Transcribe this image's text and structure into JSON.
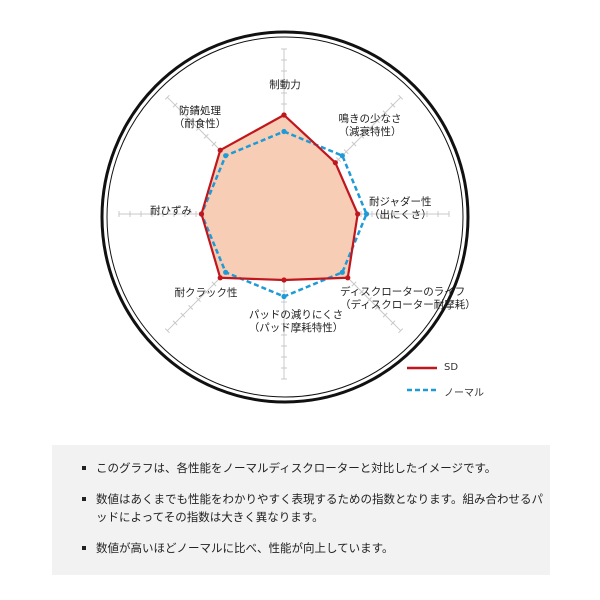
{
  "chart_data": {
    "type": "radar",
    "axes": [
      {
        "label": [
          "制動力"
        ]
      },
      {
        "label": [
          "鳴きの少なさ",
          "（減衰特性）"
        ]
      },
      {
        "label": [
          "耐ジャダー性",
          "（出にくさ）"
        ]
      },
      {
        "label": [
          "ディスクローターのライフ",
          "（ディスクローター耐摩耗）"
        ]
      },
      {
        "label": [
          "パッドの減りにくさ",
          "（パッド摩耗特性）"
        ]
      },
      {
        "label": [
          "耐クラック性"
        ]
      },
      {
        "label": [
          "耐ひずみ"
        ]
      },
      {
        "label": [
          "防錆処理",
          "（耐食性）"
        ]
      }
    ],
    "rmax": 15,
    "grid": true,
    "legend_position": "bottom-right",
    "series": [
      {
        "name": "SD",
        "values": [
          9,
          6.6,
          6.7,
          8.2,
          6,
          8.2,
          7.5,
          8.2
        ],
        "color": "#c0161e",
        "style": "solid",
        "fill": "#f7cdb5"
      },
      {
        "name": "ノーマル",
        "values": [
          7.5,
          7.5,
          7.5,
          7.5,
          7.5,
          7.5,
          7.5,
          7.5
        ],
        "color": "#1e9ad6",
        "style": "dashed"
      }
    ]
  },
  "notes": [
    "このグラフは、各性能をノーマルディスクローターと対比したイメージです。",
    "数値はあくまでも性能をわかりやすく表現するための指数となります。組み合わせるパッドによってその指数は大きく異なります。",
    "数値が高いほどノーマルに比べ、性能が向上しています。"
  ]
}
